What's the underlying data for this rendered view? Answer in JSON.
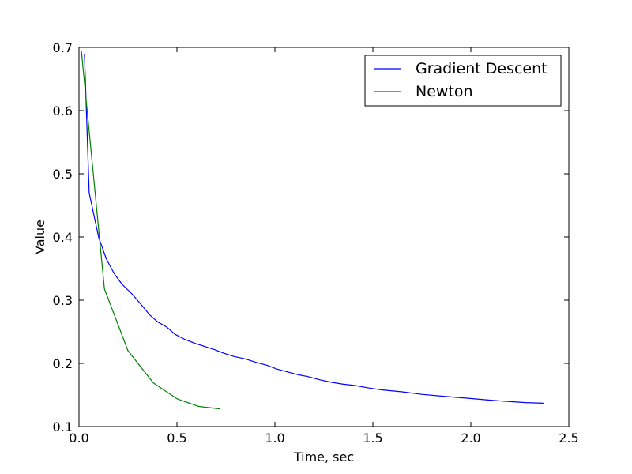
{
  "chart_data": {
    "type": "line",
    "xlabel": "Time, sec",
    "ylabel": "Value",
    "xlim": [
      0,
      2.5
    ],
    "ylim": [
      0.1,
      0.7
    ],
    "xticks": [
      0.0,
      0.5,
      1.0,
      1.5,
      2.0,
      2.5
    ],
    "xtick_labels": [
      "0.0",
      "0.5",
      "1.0",
      "1.5",
      "2.0",
      "2.5"
    ],
    "yticks": [
      0.1,
      0.2,
      0.3,
      0.4,
      0.5,
      0.6,
      0.7
    ],
    "ytick_labels": [
      "0.1",
      "0.2",
      "0.3",
      "0.4",
      "0.5",
      "0.6",
      "0.7"
    ],
    "grid": false,
    "legend_position": "top-right",
    "series": [
      {
        "name": "Gradient Descent",
        "color": "#0000ff",
        "x": [
          0.028,
          0.052,
          0.1,
          0.14,
          0.18,
          0.22,
          0.27,
          0.32,
          0.36,
          0.4,
          0.45,
          0.49,
          0.54,
          0.59,
          0.64,
          0.69,
          0.74,
          0.79,
          0.85,
          0.9,
          0.96,
          1.01,
          1.07,
          1.12,
          1.17,
          1.23,
          1.29,
          1.35,
          1.41,
          1.48,
          1.55,
          1.65,
          1.75,
          1.86,
          1.98,
          2.09,
          2.18,
          2.28,
          2.37
        ],
        "y": [
          0.69,
          0.47,
          0.4,
          0.365,
          0.342,
          0.325,
          0.31,
          0.292,
          0.277,
          0.266,
          0.257,
          0.246,
          0.238,
          0.232,
          0.227,
          0.222,
          0.216,
          0.211,
          0.207,
          0.202,
          0.197,
          0.191,
          0.186,
          0.182,
          0.179,
          0.174,
          0.17,
          0.167,
          0.165,
          0.161,
          0.158,
          0.155,
          0.151,
          0.148,
          0.145,
          0.142,
          0.14,
          0.138,
          0.137
        ]
      },
      {
        "name": "Newton",
        "color": "#008000",
        "x": [
          0.012,
          0.13,
          0.25,
          0.38,
          0.5,
          0.61,
          0.72
        ],
        "y": [
          0.695,
          0.318,
          0.22,
          0.169,
          0.144,
          0.132,
          0.128
        ]
      }
    ]
  }
}
